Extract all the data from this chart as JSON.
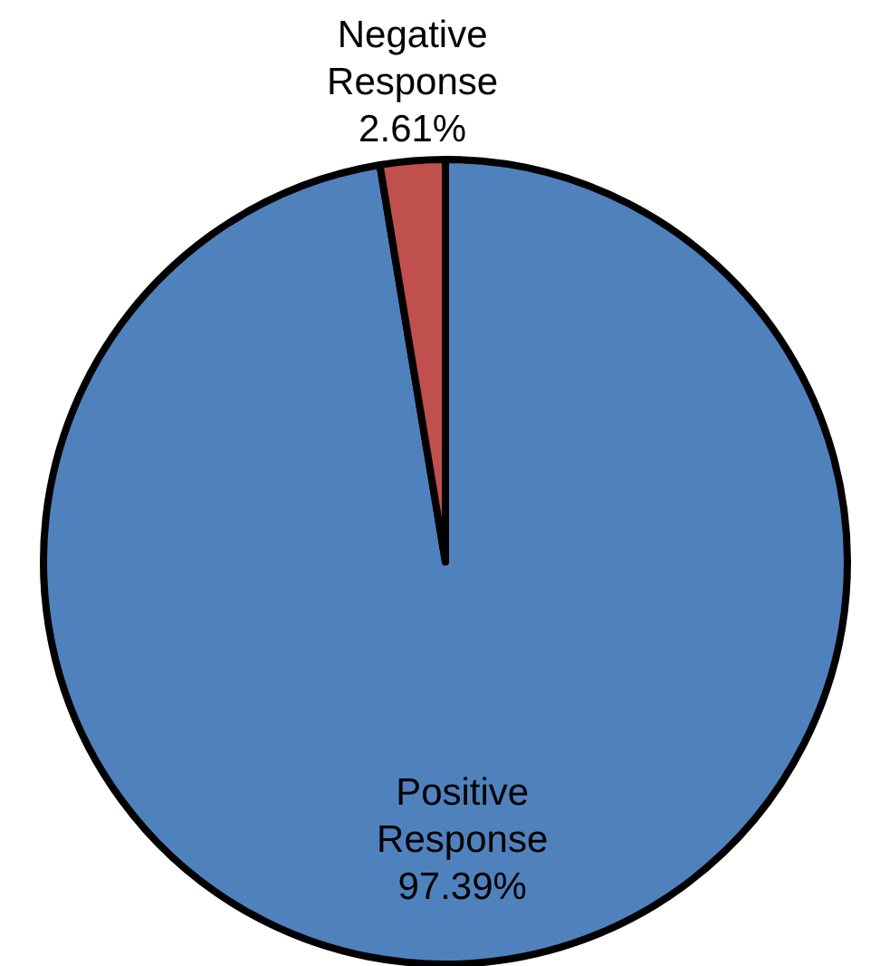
{
  "chart_data": {
    "type": "pie",
    "categories": [
      "Positive Response",
      "Negative Response"
    ],
    "values": [
      97.39,
      2.61
    ],
    "colors": [
      "#4f81bd",
      "#c0504d"
    ],
    "value_labels": [
      "97.39%",
      "2.61%"
    ],
    "legend": false
  }
}
